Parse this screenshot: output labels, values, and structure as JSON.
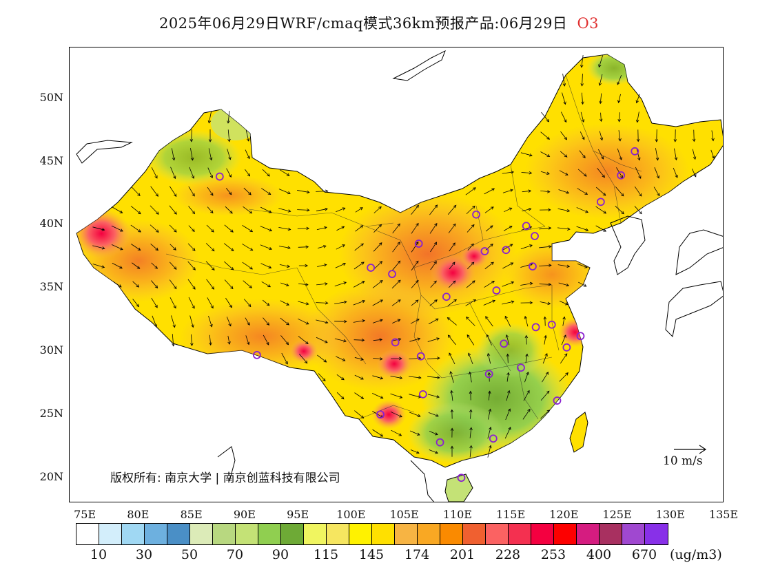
{
  "title": {
    "text": "2025年06月29日WRF/cmaq模式36km预报产品:06月29日",
    "pollutant": "O3"
  },
  "axes": {
    "lat_labels": [
      "50N",
      "45N",
      "40N",
      "35N",
      "30N",
      "25N",
      "20N"
    ],
    "lat_values": [
      50,
      45,
      40,
      35,
      30,
      25,
      20
    ],
    "lon_labels": [
      "75E",
      "80E",
      "85E",
      "90E",
      "95E",
      "100E",
      "105E",
      "110E",
      "115E",
      "120E",
      "125E",
      "130E",
      "135E"
    ],
    "lon_values": [
      75,
      80,
      85,
      90,
      95,
      100,
      105,
      110,
      115,
      120,
      125,
      130,
      135
    ]
  },
  "copyright": "版权所有: 南京大学 | 南京创蓝科技有限公司",
  "wind_reference": "10 m/s",
  "colorbar": {
    "colors": [
      "#ffffff",
      "#d3eefb",
      "#a0d8f3",
      "#6db0df",
      "#4a8fc6",
      "#dcebb8",
      "#b8d880",
      "#c4e276",
      "#90cf50",
      "#6eaa36",
      "#f0f560",
      "#f6e660",
      "#fff200",
      "#ffe000",
      "#f7b443",
      "#f9a823",
      "#fa8a00",
      "#f06030",
      "#fb6262",
      "#f43050",
      "#f40040",
      "#fd0000",
      "#d51c80",
      "#a83060",
      "#a048d0",
      "#8830e8"
    ],
    "labels": [
      "10",
      "30",
      "50",
      "70",
      "90",
      "115",
      "145",
      "174",
      "201",
      "228",
      "253",
      "400",
      "670"
    ],
    "unit": "(ug/m3)"
  },
  "stations": [
    {
      "lon": 87.6,
      "lat": 43.8
    },
    {
      "lon": 91.1,
      "lat": 29.7
    },
    {
      "lon": 101.8,
      "lat": 36.6
    },
    {
      "lon": 103.8,
      "lat": 36.1
    },
    {
      "lon": 106.3,
      "lat": 38.5
    },
    {
      "lon": 111.7,
      "lat": 40.8
    },
    {
      "lon": 112.5,
      "lat": 37.9
    },
    {
      "lon": 114.5,
      "lat": 38.0
    },
    {
      "lon": 116.4,
      "lat": 39.9
    },
    {
      "lon": 117.2,
      "lat": 39.1
    },
    {
      "lon": 117.0,
      "lat": 36.7
    },
    {
      "lon": 113.6,
      "lat": 34.8
    },
    {
      "lon": 108.9,
      "lat": 34.3
    },
    {
      "lon": 104.1,
      "lat": 30.7
    },
    {
      "lon": 106.5,
      "lat": 29.6
    },
    {
      "lon": 106.7,
      "lat": 26.6
    },
    {
      "lon": 102.7,
      "lat": 25.0
    },
    {
      "lon": 108.3,
      "lat": 22.8
    },
    {
      "lon": 113.3,
      "lat": 23.1
    },
    {
      "lon": 110.3,
      "lat": 20.0
    },
    {
      "lon": 112.9,
      "lat": 28.2
    },
    {
      "lon": 114.3,
      "lat": 30.6
    },
    {
      "lon": 115.9,
      "lat": 28.7
    },
    {
      "lon": 117.3,
      "lat": 31.9
    },
    {
      "lon": 118.8,
      "lat": 32.1
    },
    {
      "lon": 120.2,
      "lat": 30.3
    },
    {
      "lon": 121.5,
      "lat": 31.2
    },
    {
      "lon": 119.3,
      "lat": 26.1
    },
    {
      "lon": 123.4,
      "lat": 41.8
    },
    {
      "lon": 125.3,
      "lat": 43.9
    },
    {
      "lon": 126.6,
      "lat": 45.8
    }
  ],
  "hotspots": [
    {
      "lon": 76.5,
      "lat": 39.3,
      "value": 300
    },
    {
      "lon": 109.5,
      "lat": 36.2,
      "value": 260
    },
    {
      "lon": 104.0,
      "lat": 29.0,
      "value": 230
    },
    {
      "lon": 103.5,
      "lat": 25.0,
      "value": 230
    },
    {
      "lon": 121.0,
      "lat": 31.5,
      "value": 230
    },
    {
      "lon": 95.5,
      "lat": 30.0,
      "value": 210
    },
    {
      "lon": 111.5,
      "lat": 37.5,
      "value": 210
    }
  ]
}
